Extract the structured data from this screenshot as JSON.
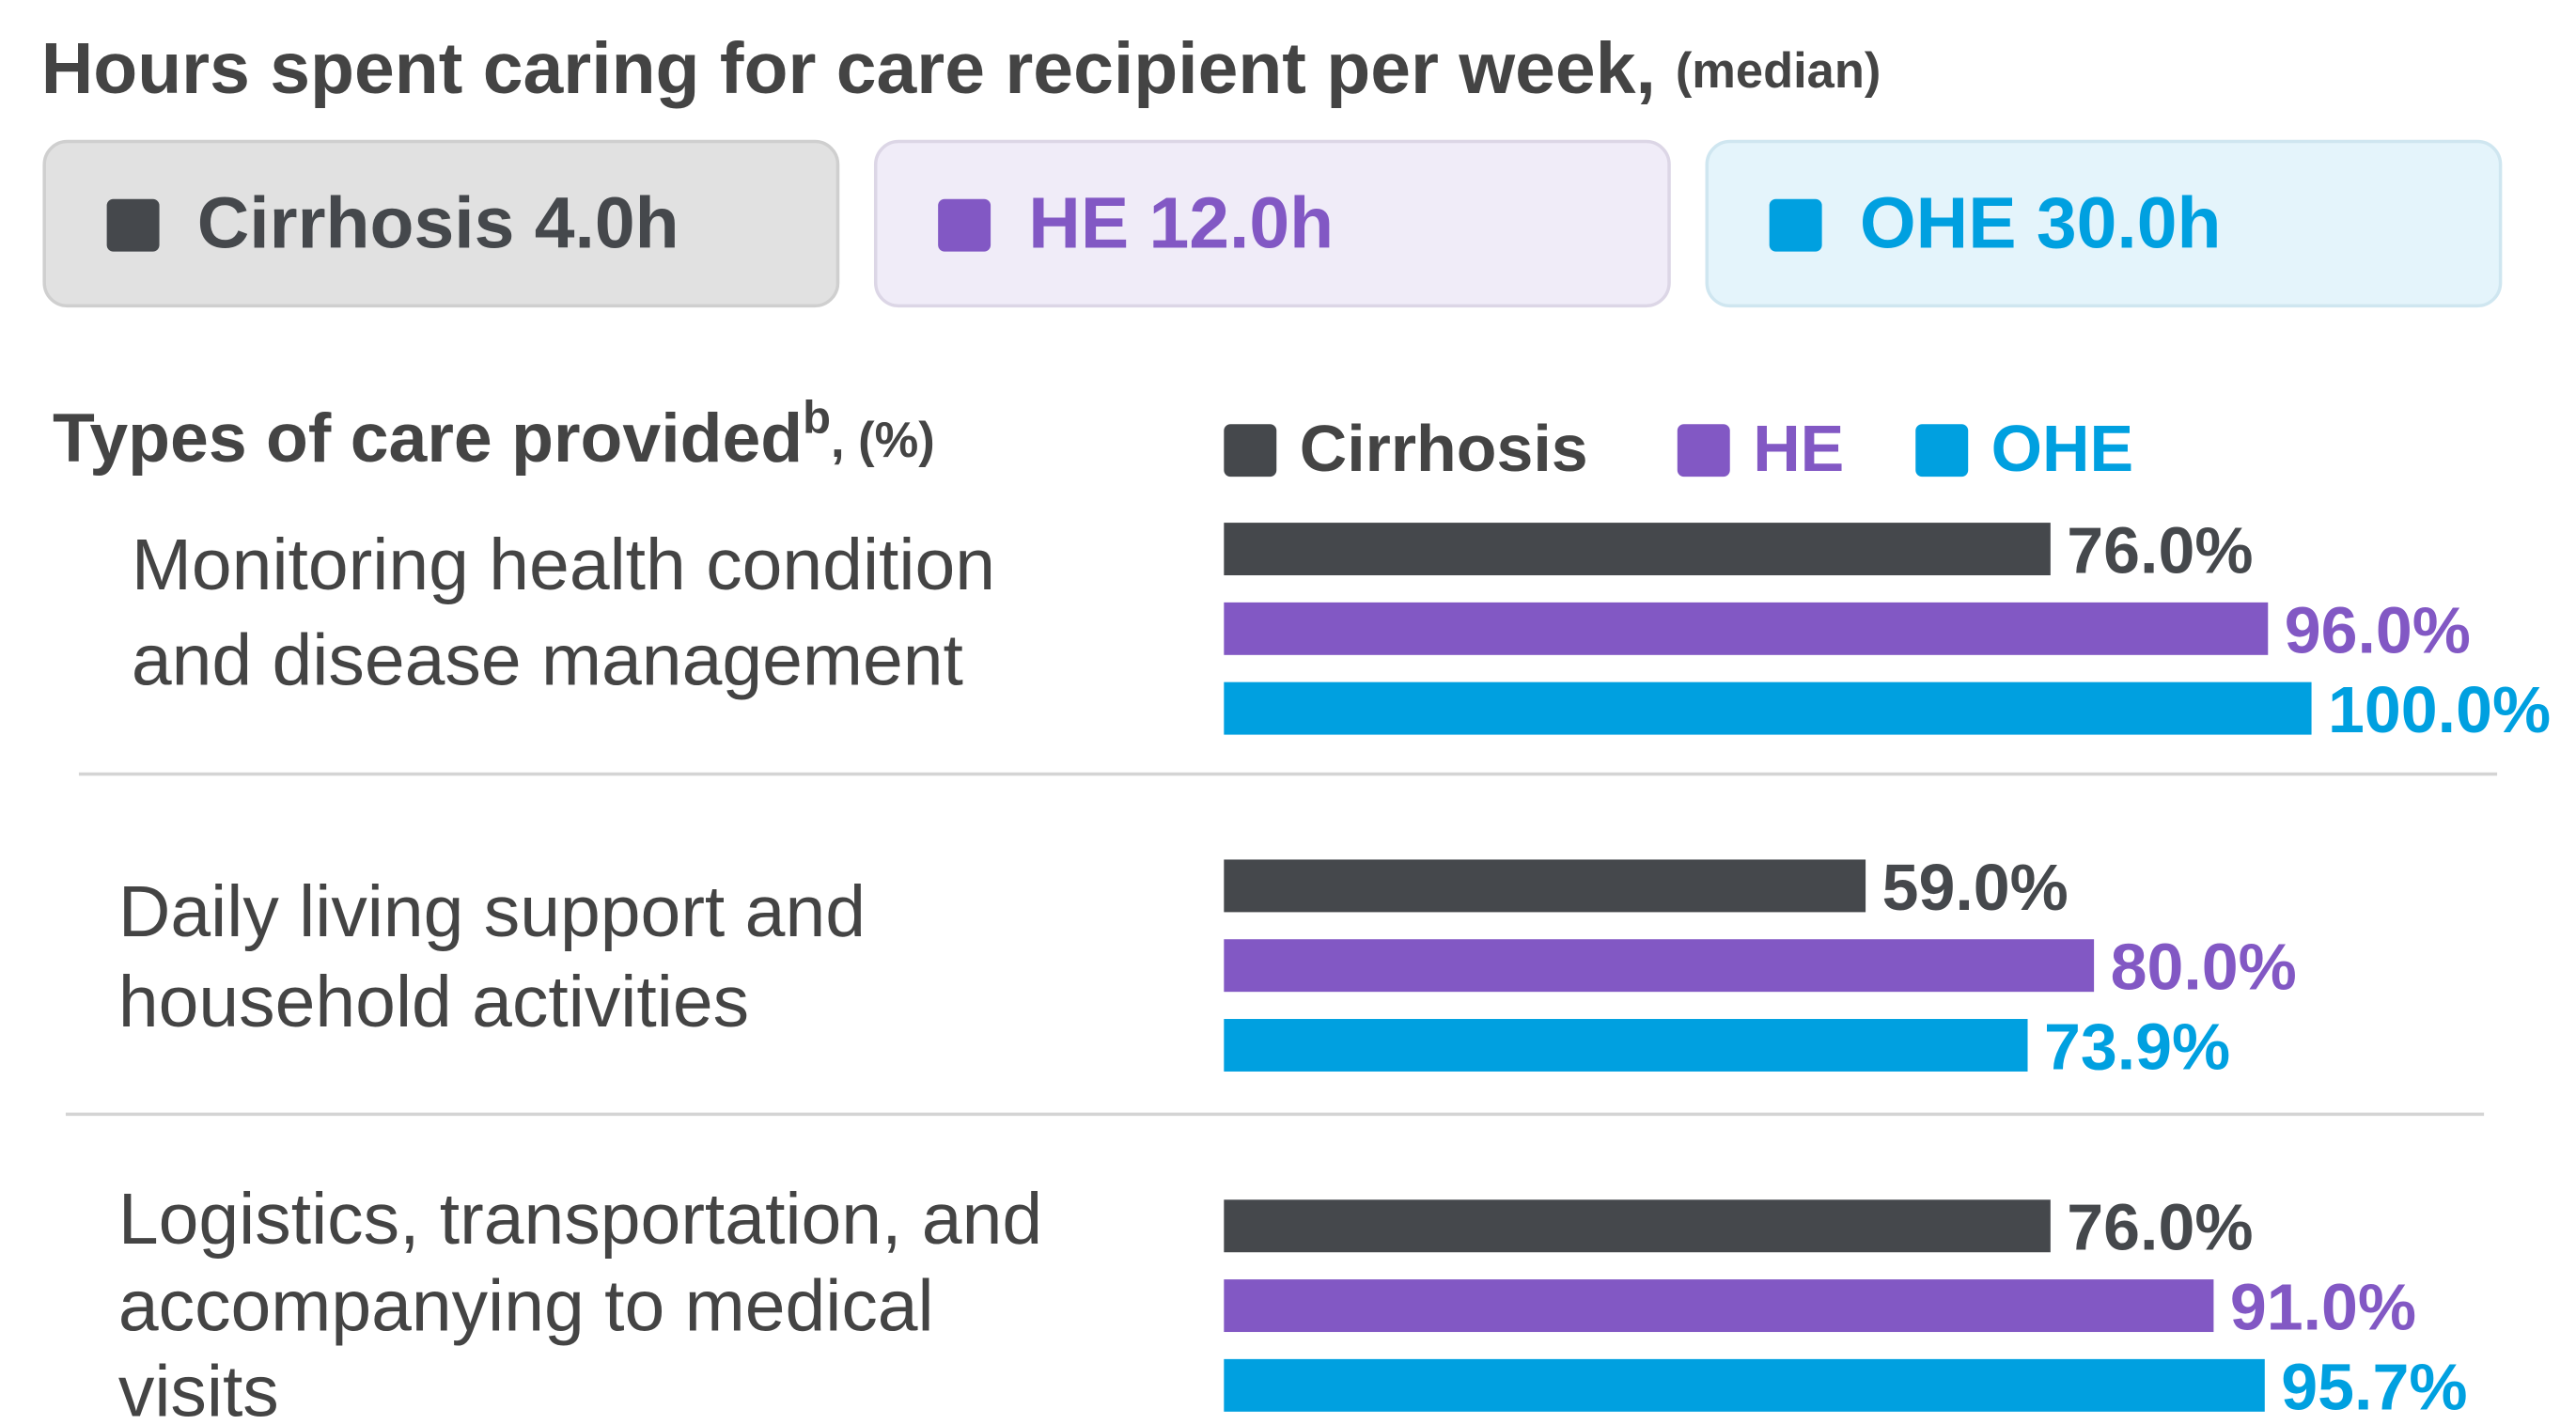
{
  "header": {
    "title": "Hours spent caring for care recipient per week,",
    "subtitle": "(median)",
    "boxes": [
      {
        "text": "Cirrhosis 4.0h",
        "color": "#45484c",
        "fill": "#e1e1e1",
        "stroke": "#cfcfcf"
      },
      {
        "text": "HE 12.0h",
        "color": "#8258c4",
        "fill": "#f0ecf8",
        "stroke": "#dcd6e6"
      },
      {
        "text": "OHE 30.0h",
        "color": "#00a0e0",
        "fill": "#e4f4fb",
        "stroke": "#cfe6f0"
      }
    ]
  },
  "chart_data": {
    "type": "bar",
    "orientation": "horizontal",
    "title": "Types of care provided",
    "title_superscript": "b",
    "unit": ", (%)",
    "categories": [
      [
        "Monitoring health condition",
        "and disease management"
      ],
      [
        "Daily living support and",
        "household activities"
      ],
      [
        "Logistics, transportation, and",
        "accompanying to medical",
        "visits"
      ]
    ],
    "series": [
      {
        "name": "Cirrhosis",
        "color": "#45484c",
        "values": [
          76.0,
          59.0,
          76.0
        ],
        "value_labels": [
          "76.0%",
          "59.0%",
          "76.0%"
        ]
      },
      {
        "name": "HE",
        "color": "#8258c4",
        "values": [
          96.0,
          80.0,
          91.0
        ],
        "value_labels": [
          "96.0%",
          "80.0%",
          "91.0%"
        ]
      },
      {
        "name": "OHE",
        "color": "#00a0e0",
        "values": [
          100.0,
          73.9,
          95.7
        ],
        "value_labels": [
          "100.0%",
          "73.9%",
          "95.7%"
        ]
      }
    ],
    "xlim": [
      0,
      100
    ]
  }
}
